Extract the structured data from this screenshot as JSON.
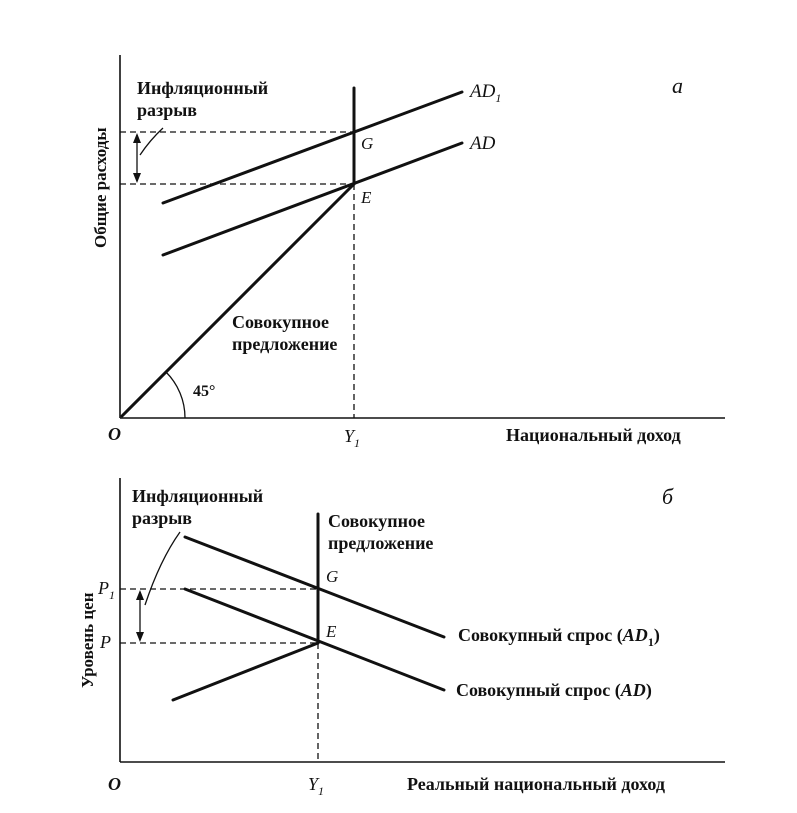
{
  "panel_a": {
    "panel_letter": "a",
    "y_axis_label": "Общие расходы",
    "x_axis_label": "Национальный доход",
    "origin_label": "O",
    "y1_label": "Y",
    "y1_subscript": "1",
    "gap_label_line1": "Инфляционный",
    "gap_label_line2": "разрыв",
    "ad1_label": "AD",
    "ad1_subscript": "1",
    "ad_label": "AD",
    "point_g": "G",
    "point_e": "E",
    "supply_label_line1": "Совокупное",
    "supply_label_line2": "предложение",
    "angle_label": "45°"
  },
  "panel_b": {
    "panel_letter": "б",
    "y_axis_label": "Уровень цен",
    "x_axis_label": "Реальный национальный доход",
    "origin_label": "O",
    "y1_label": "Y",
    "y1_subscript": "1",
    "gap_label_line1": "Инфляционный",
    "gap_label_line2": "разрыв",
    "supply_label_line1": "Совокупное",
    "supply_label_line2": "предложение",
    "p1_label": "P",
    "p1_subscript": "1",
    "p_label": "P",
    "point_g": "G",
    "point_e": "E",
    "ad1_curve_label_prefix": "Совокупный спрос (",
    "ad1_curve_label_ad": "AD",
    "ad1_curve_label_sub": "1",
    "ad1_curve_label_suffix": ")",
    "ad_curve_label_prefix": "Совокупный спрос (",
    "ad_curve_label_ad": "AD",
    "ad_curve_label_suffix": ")"
  }
}
